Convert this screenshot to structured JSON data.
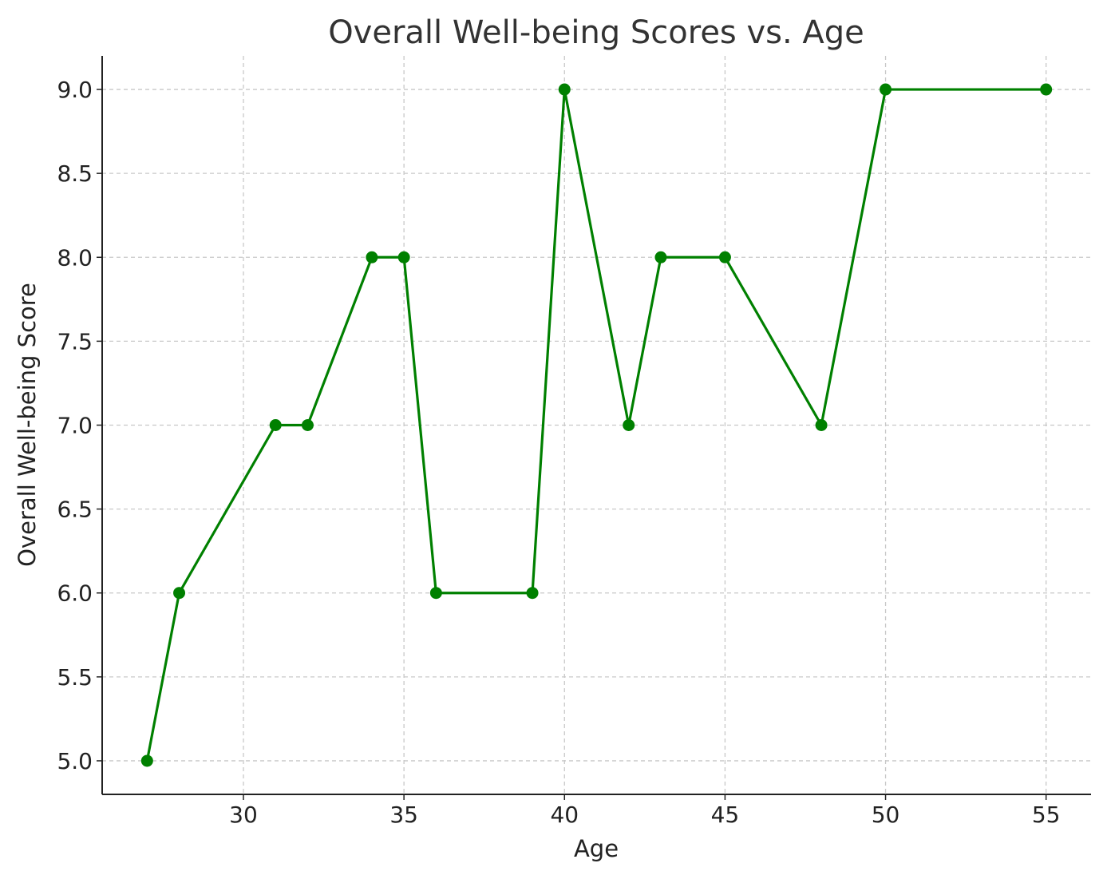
{
  "chart_data": {
    "type": "line",
    "title": "Overall Well-being Scores vs. Age",
    "xlabel": "Age",
    "ylabel": "Overall Well-being Score",
    "xlim": [
      25.6,
      56.4
    ],
    "ylim": [
      4.8,
      9.2
    ],
    "xticks": [
      30,
      35,
      40,
      45,
      50,
      55
    ],
    "yticks": [
      5.0,
      5.5,
      6.0,
      6.5,
      7.0,
      7.5,
      8.0,
      8.5,
      9.0
    ],
    "grid": true,
    "series": [
      {
        "color": "#008000",
        "marker": "circle",
        "x": [
          27,
          28,
          31,
          32,
          34,
          35,
          36,
          39,
          40,
          42,
          43,
          45,
          48,
          50,
          55
        ],
        "y": [
          5,
          6,
          7,
          7,
          8,
          8,
          6,
          6,
          9,
          7,
          8,
          8,
          7,
          9,
          9
        ]
      }
    ]
  }
}
